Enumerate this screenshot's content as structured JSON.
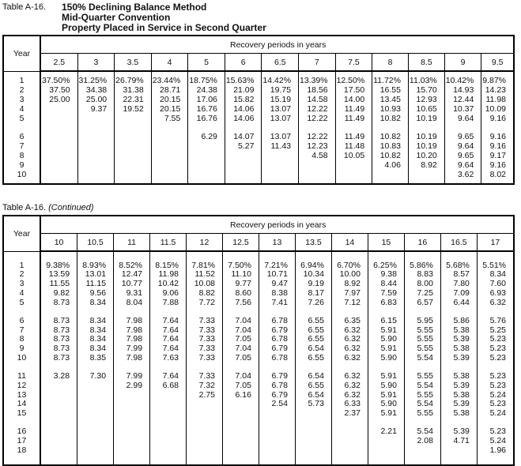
{
  "table1": {
    "label": "Table A-16.",
    "title_lines": [
      "150% Declining Balance Method",
      "Mid-Quarter Convention",
      "Property Placed in Service in Second Quarter"
    ],
    "year_header": "Year",
    "group_header": "Recovery periods in years",
    "years": [
      "1",
      "2",
      "3",
      "4",
      "5",
      "6",
      "7",
      "8",
      "9",
      "10"
    ],
    "groups": [
      5,
      5
    ],
    "columns": [
      {
        "period": "2.5",
        "values": [
          "37.50%",
          "37.50",
          "25.00",
          "",
          "",
          "",
          "",
          "",
          "",
          ""
        ]
      },
      {
        "period": "3",
        "values": [
          "31.25%",
          "34.38",
          "25.00",
          "9.37",
          "",
          "",
          "",
          "",
          "",
          ""
        ]
      },
      {
        "period": "3.5",
        "values": [
          "26.79%",
          "31.38",
          "22.31",
          "19.52",
          "",
          "",
          "",
          "",
          "",
          ""
        ]
      },
      {
        "period": "4",
        "values": [
          "23.44%",
          "28.71",
          "20.15",
          "20.15",
          "7.55",
          "",
          "",
          "",
          "",
          ""
        ]
      },
      {
        "period": "5",
        "values": [
          "18.75%",
          "24.38",
          "17.06",
          "16.76",
          "16.76",
          "6.29",
          "",
          "",
          "",
          ""
        ]
      },
      {
        "period": "6",
        "values": [
          "15.63%",
          "21.09",
          "15.82",
          "14.06",
          "14.06",
          "14.07",
          "5.27",
          "",
          "",
          ""
        ]
      },
      {
        "period": "6.5",
        "values": [
          "14.42%",
          "19.75",
          "15.19",
          "13.07",
          "13.07",
          "13.07",
          "11.43",
          "",
          "",
          ""
        ]
      },
      {
        "period": "7",
        "values": [
          "13.39%",
          "18.56",
          "14.58",
          "12.22",
          "12.22",
          "12.22",
          "12.23",
          "4.58",
          "",
          ""
        ]
      },
      {
        "period": "7.5",
        "values": [
          "12.50%",
          "17.50",
          "14.00",
          "11.49",
          "11.49",
          "11.49",
          "11.48",
          "10.05",
          "",
          ""
        ]
      },
      {
        "period": "8",
        "values": [
          "11.72%",
          "16.55",
          "13.45",
          "10.93",
          "10.82",
          "10.82",
          "10.83",
          "10.82",
          "4.06",
          ""
        ]
      },
      {
        "period": "8.5",
        "values": [
          "11.03%",
          "15.70",
          "12.93",
          "10.65",
          "10.19",
          "10.19",
          "10.19",
          "10.20",
          "8.92",
          ""
        ]
      },
      {
        "period": "9",
        "values": [
          "10.42%",
          "14.93",
          "12.44",
          "10.37",
          "9.64",
          "9.65",
          "9.64",
          "9.65",
          "9.64",
          "3.62"
        ]
      },
      {
        "period": "9.5",
        "values": [
          "9.87%",
          "14.23",
          "11.98",
          "10.09",
          "9.16",
          "9.16",
          "9.16",
          "9.17",
          "9.16",
          "8.02"
        ]
      }
    ]
  },
  "table2": {
    "label": "Table A-16.",
    "continued": "(Continued)",
    "year_header": "Year",
    "group_header": "Recovery periods in years",
    "years": [
      "1",
      "2",
      "3",
      "4",
      "5",
      "6",
      "7",
      "8",
      "9",
      "10",
      "11",
      "12",
      "13",
      "14",
      "15",
      "16",
      "17",
      "18"
    ],
    "groups": [
      5,
      5,
      5,
      3
    ],
    "columns": [
      {
        "period": "10",
        "values": [
          "9.38%",
          "13.59",
          "11.55",
          "9.82",
          "8.73",
          "8.73",
          "8.73",
          "8.73",
          "8.73",
          "8.73",
          "3.28",
          "",
          "",
          "",
          "",
          "",
          "",
          ""
        ]
      },
      {
        "period": "10.5",
        "values": [
          "8.93%",
          "13.01",
          "11.15",
          "9.56",
          "8.34",
          "8.34",
          "8.34",
          "8.34",
          "8.34",
          "8.35",
          "7.30",
          "",
          "",
          "",
          "",
          "",
          "",
          ""
        ]
      },
      {
        "period": "11",
        "values": [
          "8.52%",
          "12.47",
          "10.77",
          "9.31",
          "8.04",
          "7.98",
          "7.98",
          "7.98",
          "7.99",
          "7.98",
          "7.99",
          "2.99",
          "",
          "",
          "",
          "",
          "",
          ""
        ]
      },
      {
        "period": "11.5",
        "values": [
          "8.15%",
          "11.98",
          "10.42",
          "9.06",
          "7.88",
          "7.64",
          "7.64",
          "7.64",
          "7.64",
          "7.63",
          "7.64",
          "6.68",
          "",
          "",
          "",
          "",
          "",
          ""
        ]
      },
      {
        "period": "12",
        "values": [
          "7.81%",
          "11.52",
          "10.08",
          "8.82",
          "7.72",
          "7.33",
          "7.33",
          "7.33",
          "7.33",
          "7.33",
          "7.33",
          "7.32",
          "2.75",
          "",
          "",
          "",
          "",
          ""
        ]
      },
      {
        "period": "12.5",
        "values": [
          "7.50%",
          "11.10",
          "9.77",
          "8.60",
          "7.56",
          "7.04",
          "7.04",
          "7.05",
          "7.04",
          "7.05",
          "7.04",
          "7.05",
          "6.16",
          "",
          "",
          "",
          "",
          ""
        ]
      },
      {
        "period": "13",
        "values": [
          "7.21%",
          "10.71",
          "9.47",
          "8.38",
          "7.41",
          "6.78",
          "6.79",
          "6.78",
          "6.79",
          "6.78",
          "6.79",
          "6.78",
          "6.79",
          "2.54",
          "",
          "",
          "",
          ""
        ]
      },
      {
        "period": "13.5",
        "values": [
          "6.94%",
          "10.34",
          "9.19",
          "8.17",
          "7.26",
          "6.55",
          "6.55",
          "6.55",
          "6.54",
          "6.55",
          "6.54",
          "6.55",
          "6.54",
          "5.73",
          "",
          "",
          "",
          ""
        ]
      },
      {
        "period": "14",
        "values": [
          "6.70%",
          "10.00",
          "8.92",
          "7.97",
          "7.12",
          "6.35",
          "6.32",
          "6.32",
          "6.32",
          "6.32",
          "6.32",
          "6.32",
          "6.32",
          "6.33",
          "2.37",
          "",
          "",
          ""
        ]
      },
      {
        "period": "15",
        "values": [
          "6.25%",
          "9.38",
          "8.44",
          "7.59",
          "6.83",
          "6.15",
          "5.91",
          "5.90",
          "5.91",
          "5.90",
          "5.91",
          "5.90",
          "5.91",
          "5.90",
          "5.91",
          "2.21",
          "",
          ""
        ]
      },
      {
        "period": "16",
        "values": [
          "5.86%",
          "8.83",
          "8.00",
          "7.25",
          "6.57",
          "5.95",
          "5.55",
          "5.55",
          "5.55",
          "5.54",
          "5.55",
          "5.54",
          "5.55",
          "5.54",
          "5.55",
          "5.54",
          "2.08",
          ""
        ]
      },
      {
        "period": "16.5",
        "values": [
          "5.68%",
          "8.57",
          "7.80",
          "7.09",
          "6.44",
          "5.86",
          "5.38",
          "5.39",
          "5.38",
          "5.39",
          "5.38",
          "5.39",
          "5.38",
          "5.39",
          "5.38",
          "5.39",
          "4.71",
          ""
        ]
      },
      {
        "period": "17",
        "values": [
          "5.51%",
          "8.34",
          "7.60",
          "6.93",
          "6.32",
          "5.76",
          "5.25",
          "5.23",
          "5.23",
          "5.23",
          "5.23",
          "5.23",
          "5.24",
          "5.23",
          "5.24",
          "5.23",
          "5.24",
          "1.96"
        ]
      }
    ]
  }
}
